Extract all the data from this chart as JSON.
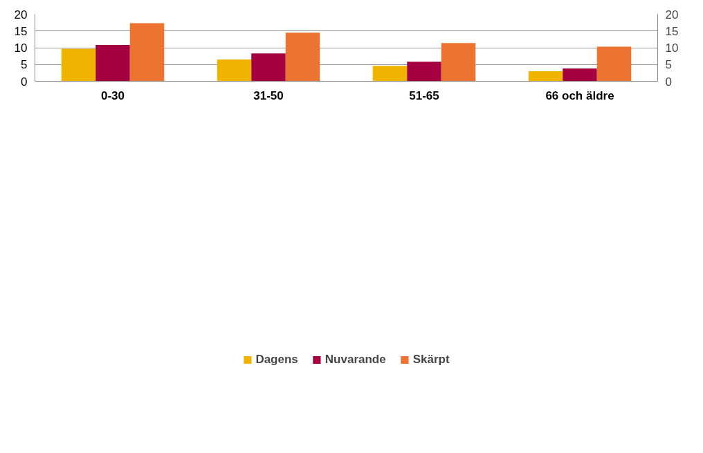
{
  "chart_data": {
    "type": "bar",
    "categories": [
      "0-30",
      "31-50",
      "51-65",
      "66 och äldre"
    ],
    "series": [
      {
        "name": "Dagens",
        "color": "#f0b400",
        "values": [
          9.7,
          6.5,
          4.6,
          3.0
        ]
      },
      {
        "name": "Nuvarande",
        "color": "#a50040",
        "values": [
          10.8,
          8.3,
          5.8,
          3.8
        ]
      },
      {
        "name": "Skärpt",
        "color": "#ed7430",
        "values": [
          17.3,
          14.5,
          11.4,
          10.3
        ]
      }
    ],
    "ylim": [
      0,
      20
    ],
    "yticks": [
      0,
      5,
      10,
      15,
      20
    ],
    "y2lim": [
      0,
      20
    ],
    "y2ticks": [
      0,
      5,
      10,
      15,
      20
    ],
    "grid": "y",
    "legend": "bottom"
  }
}
